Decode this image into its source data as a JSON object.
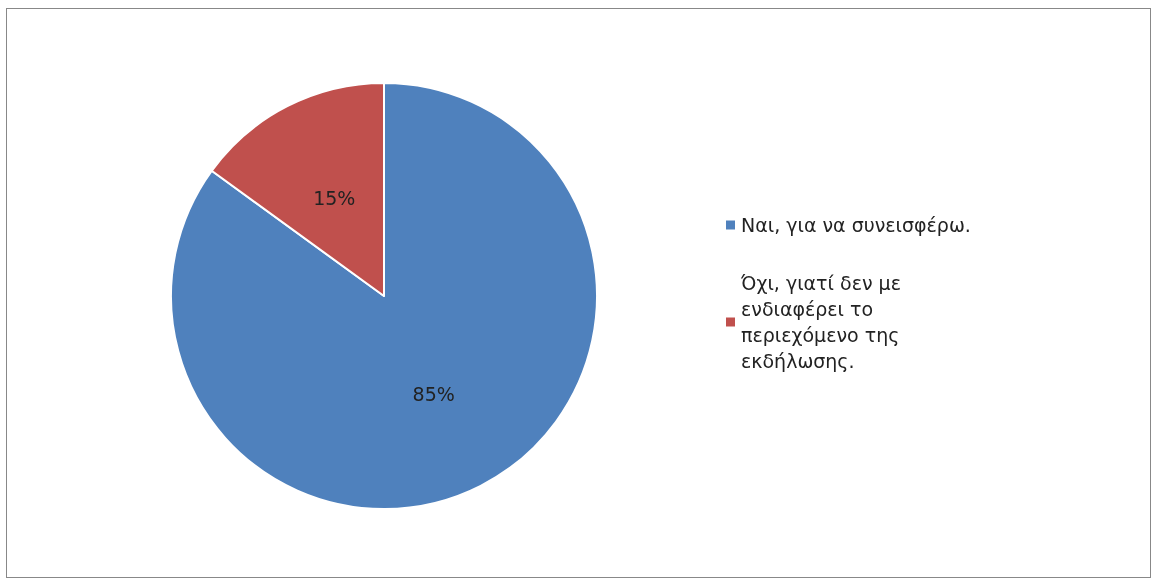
{
  "chart_data": {
    "type": "pie",
    "categories": [
      "Ναι, για να συνεισφέρω.",
      "Όχι, γιατί δεν με ενδιαφέρει το περιεχόμενο της εκδήλωσης."
    ],
    "values": [
      85,
      15
    ],
    "colors": [
      "#4f81bd",
      "#c0504d"
    ],
    "value_labels": [
      "85%",
      "15%"
    ],
    "legend": "right"
  }
}
